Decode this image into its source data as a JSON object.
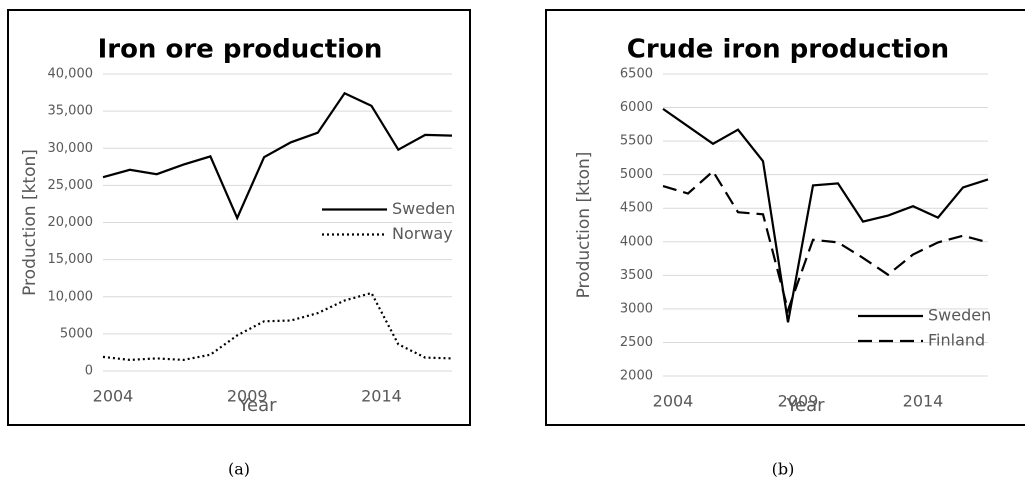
{
  "chart_data": [
    {
      "type": "line",
      "title": "Iron ore production",
      "caption": "(a)",
      "x_label": "Year",
      "y_label": "Production [kton]",
      "x": [
        2004,
        2005,
        2006,
        2007,
        2008,
        2009,
        2010,
        2011,
        2012,
        2013,
        2014,
        2015,
        2016,
        2017
      ],
      "xlim": [
        2004,
        2017
      ],
      "xticks": [
        2004,
        2009,
        2014
      ],
      "ylim": [
        0,
        40000
      ],
      "yticks": [
        0,
        5000,
        {
          "value": 10000,
          "label": "10,000"
        },
        {
          "value": 15000,
          "label": "15,000"
        },
        {
          "value": 20000,
          "label": "20,000"
        },
        {
          "value": 25000,
          "label": "25,000"
        },
        {
          "value": 30000,
          "label": "30,000"
        },
        {
          "value": 35000,
          "label": "35,000"
        },
        {
          "value": 40000,
          "label": "40,000"
        }
      ],
      "grid": true,
      "legend": "right",
      "series": [
        {
          "name": "Sweden",
          "color": "#000000",
          "dash": "solid",
          "values": [
            26100,
            27100,
            26500,
            27800,
            28900,
            20600,
            28800,
            30800,
            32100,
            37400,
            35700,
            29800,
            31800,
            31700
          ]
        },
        {
          "name": "Norway",
          "color": "#000000",
          "dash": "dotted",
          "values": [
            1900,
            1500,
            1700,
            1500,
            2200,
            4800,
            6700,
            6800,
            7800,
            9500,
            10500,
            3600,
            1800,
            1700
          ]
        }
      ]
    },
    {
      "type": "line",
      "title": "Crude iron production",
      "caption": "(b)",
      "x_label": "Year",
      "y_label": "Production [kton]",
      "x": [
        2004,
        2005,
        2006,
        2007,
        2008,
        2009,
        2010,
        2011,
        2012,
        2013,
        2014,
        2015,
        2016,
        2017
      ],
      "xlim": [
        2004,
        2017
      ],
      "xticks": [
        2004,
        2009,
        2014
      ],
      "ylim": [
        2000,
        6500
      ],
      "yticks": [
        2000,
        2500,
        3000,
        3500,
        4000,
        4500,
        5000,
        5500,
        6000,
        6500
      ],
      "grid": true,
      "legend": "lower right",
      "series": [
        {
          "name": "Sweden",
          "color": "#000000",
          "dash": "solid",
          "values": [
            5980,
            5720,
            5460,
            5670,
            5200,
            2800,
            4840,
            4870,
            4300,
            4390,
            4530,
            4360,
            4810,
            4930
          ]
        },
        {
          "name": "Finland",
          "color": "#000000",
          "dash": "dashed",
          "values": [
            4830,
            4720,
            5050,
            4440,
            4410,
            2980,
            4030,
            3990,
            3760,
            3510,
            3810,
            3990,
            4090,
            3990
          ]
        }
      ]
    }
  ]
}
